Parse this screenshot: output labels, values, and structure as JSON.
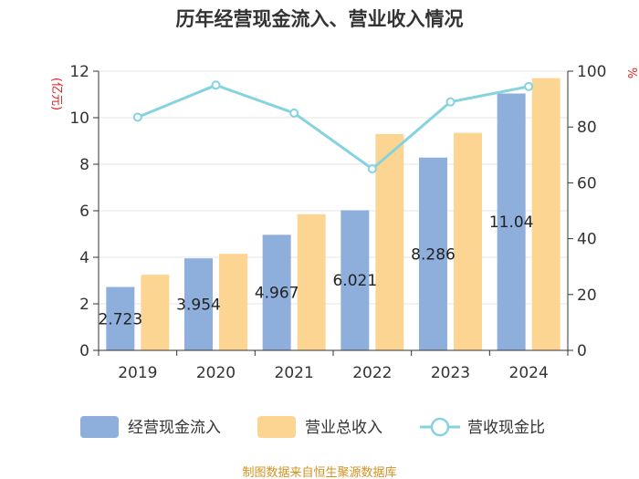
{
  "chart_data": {
    "type": "bar+line",
    "title": "历年经营现金流入、营业收入情况",
    "categories": [
      "2019",
      "2020",
      "2021",
      "2022",
      "2023",
      "2024"
    ],
    "series": [
      {
        "name": "经营现金流入",
        "type": "bar",
        "axis": "left",
        "color": "#8eaedb",
        "values": [
          2.723,
          3.954,
          4.967,
          6.021,
          8.286,
          11.04
        ],
        "labels": [
          "2.723",
          "3.954",
          "4.967",
          "6.021",
          "8.286",
          "11.04"
        ]
      },
      {
        "name": "营业总收入",
        "type": "bar",
        "axis": "left",
        "color": "#fdd592",
        "values": [
          3.25,
          4.15,
          5.85,
          9.3,
          9.35,
          11.7
        ]
      },
      {
        "name": "营收现金比",
        "type": "line",
        "axis": "right",
        "color": "#86d3df",
        "values": [
          83.5,
          95,
          85,
          65,
          89,
          94.5
        ]
      }
    ],
    "y_left": {
      "label": "(亿元)",
      "min": 0,
      "max": 12,
      "ticks": [
        0,
        2,
        4,
        6,
        8,
        10,
        12
      ]
    },
    "y_right": {
      "label": "%",
      "min": 0,
      "max": 100,
      "ticks": [
        0,
        20,
        40,
        60,
        80,
        100
      ]
    },
    "legend_position": "bottom"
  },
  "source_note": "制图数据来自恒生聚源数据库"
}
